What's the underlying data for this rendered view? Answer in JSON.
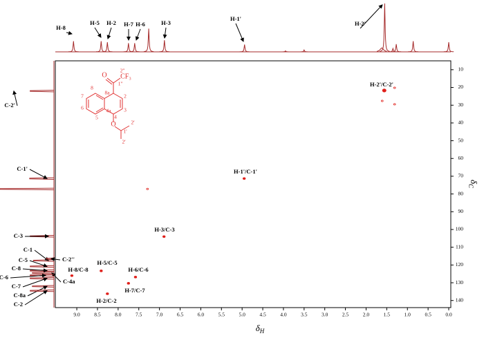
{
  "chart_data": {
    "type": "hsqc",
    "x_label": "δ",
    "x_label_sub": "H",
    "y_label": "δ",
    "y_label_sub": "C",
    "xlim": [
      9.52,
      -0.05
    ],
    "xticks": [
      {
        "value": 9,
        "label": "9.0"
      },
      {
        "value": 8.5,
        "label": "8.5"
      },
      {
        "value": 8,
        "label": "8.0"
      },
      {
        "value": 7.5,
        "label": "7.5"
      },
      {
        "value": 7,
        "label": "7.0"
      },
      {
        "value": 6.5,
        "label": "6.5"
      },
      {
        "value": 6,
        "label": "6.0"
      },
      {
        "value": 5.5,
        "label": "5.5"
      },
      {
        "value": 5,
        "label": "5.0"
      },
      {
        "value": 4.5,
        "label": "4.5"
      },
      {
        "value": 4,
        "label": "4.0"
      },
      {
        "value": 3.5,
        "label": "3.5"
      },
      {
        "value": 3,
        "label": "3.0"
      },
      {
        "value": 2.5,
        "label": "2.5"
      },
      {
        "value": 2,
        "label": "2.0"
      },
      {
        "value": 1.5,
        "label": "1.5"
      },
      {
        "value": 1,
        "label": "1.0"
      },
      {
        "value": 0.5,
        "label": "0.5"
      },
      {
        "value": 0,
        "label": "0.0"
      }
    ],
    "ylim": [
      5,
      144
    ],
    "yticks": [
      10,
      20,
      30,
      40,
      50,
      60,
      70,
      80,
      90,
      100,
      110,
      120,
      130,
      140
    ],
    "trace_color": "#a52a2a",
    "peak_color": "#e0201b",
    "cross_peaks": [
      {
        "label": "H-2'/C-2'",
        "x": 1.56,
        "y": 21.7
      },
      {
        "label": "H-1'/C-1'",
        "x": 4.95,
        "y": 71.3
      },
      {
        "label": "H-3/C-3",
        "x": 6.89,
        "y": 104
      },
      {
        "label": "H-8/C-8",
        "x": 9.12,
        "y": 126
      },
      {
        "label": "H-5/C-5",
        "x": 8.41,
        "y": 123.3
      },
      {
        "label": "H-6/C-6",
        "x": 7.58,
        "y": 126.8
      },
      {
        "label": "H-7/C-7",
        "x": 7.75,
        "y": 130.3
      },
      {
        "label": "H-2/C-2",
        "x": 8.26,
        "y": 136.2
      }
    ],
    "minor_cross_peaks": {
      "x": [
        7.29,
        1.31,
        1.31,
        1.61
      ],
      "y": [
        77.2,
        20.2,
        29.5,
        27.6
      ]
    },
    "proton_peaks": [
      {
        "label": "H-8",
        "x": 9.08,
        "height": 22
      },
      {
        "label": "H-5",
        "x": 8.41,
        "height": 22
      },
      {
        "label": "H-2",
        "x": 8.26,
        "height": 20
      },
      {
        "label": "H-7",
        "x": 7.75,
        "height": 18
      },
      {
        "label": "H-6",
        "x": 7.6,
        "height": 18
      },
      {
        "label": "H-3",
        "x": 6.88,
        "height": 24
      },
      {
        "label": "H-1'",
        "x": 4.94,
        "height": 15
      },
      {
        "label": "H-2'",
        "x": 1.55,
        "height": 100
      }
    ],
    "minor_proton_peaks": {
      "x": [
        7.26,
        3.95,
        3.5,
        1.62,
        1.35,
        1.27,
        0.86,
        0.0
      ],
      "height": [
        48,
        2,
        4,
        8,
        7,
        16,
        22,
        20
      ]
    },
    "carbon_peaks": [
      {
        "label": "C-2'",
        "y": 22.0,
        "height": 44
      },
      {
        "label": "C-1'",
        "y": 71.3,
        "height": 45
      },
      {
        "label": "C-3",
        "y": 103.8,
        "height": 44
      },
      {
        "label": "C-1",
        "y": 117.5,
        "height": 38
      },
      {
        "label": "C-2''",
        "y": 116.5,
        "height": 14
      },
      {
        "label": "C-5",
        "y": 120.8,
        "height": 44
      },
      {
        "label": "C-8",
        "y": 123.2,
        "height": 44
      },
      {
        "label": "C-4a",
        "y": 124.5,
        "height": 40
      },
      {
        "label": "C-6",
        "y": 125.8,
        "height": 44
      },
      {
        "label": "C-7",
        "y": 127.5,
        "height": 44
      },
      {
        "label": "C-8a",
        "y": 132,
        "height": 40
      },
      {
        "label": "C-2",
        "y": 134.5,
        "height": 44
      }
    ],
    "minor_carbon_peaks": {
      "y": [
        77.2
      ],
      "height": [
        100
      ]
    },
    "structure": {
      "labels": [
        "8",
        "8a",
        "7",
        "6",
        "5",
        "4a",
        "4",
        "3",
        "2",
        "1''",
        "2''",
        "O",
        "CF₃",
        "O",
        "2'",
        "1'",
        "2'"
      ]
    }
  }
}
